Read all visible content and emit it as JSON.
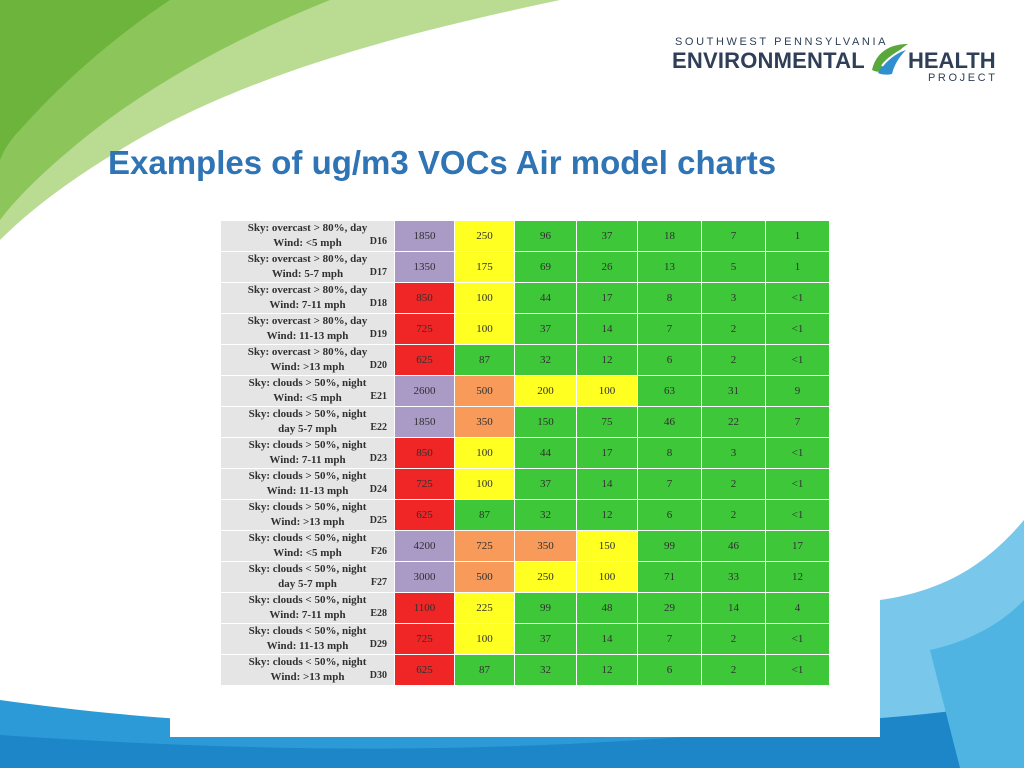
{
  "logo": {
    "top_line": "SOUTHWEST PENNSYLVANIA",
    "environmental": "ENVIRONMENTAL",
    "health": "HEALTH",
    "project": "PROJECT"
  },
  "title": "Examples of ug/m3 VOCs Air model charts",
  "colors": {
    "title": "#2f74b5",
    "purple": "#a99ac6",
    "yellow": "#ffff22",
    "red": "#f02525",
    "orange": "#f79a5a",
    "green": "#3fc73a"
  },
  "rows": [
    {
      "line1": "Sky: overcast > 80%, day",
      "line2": "Wind: <5 mph",
      "code": "D16",
      "values": [
        "1850",
        "250",
        "96",
        "37",
        "18",
        "7",
        "1"
      ],
      "colors": [
        "purple",
        "yellow",
        "green",
        "green",
        "green",
        "green",
        "green"
      ]
    },
    {
      "line1": "Sky: overcast > 80%, day",
      "line2": "Wind: 5-7 mph",
      "code": "D17",
      "values": [
        "1350",
        "175",
        "69",
        "26",
        "13",
        "5",
        "1"
      ],
      "colors": [
        "purple",
        "yellow",
        "green",
        "green",
        "green",
        "green",
        "green"
      ]
    },
    {
      "line1": "Sky: overcast > 80%, day",
      "line2": "Wind: 7-11 mph",
      "code": "D18",
      "values": [
        "850",
        "100",
        "44",
        "17",
        "8",
        "3",
        "<1"
      ],
      "colors": [
        "red",
        "yellow",
        "green",
        "green",
        "green",
        "green",
        "green"
      ]
    },
    {
      "line1": "Sky: overcast > 80%, day",
      "line2": "Wind: 11-13 mph",
      "code": "D19",
      "values": [
        "725",
        "100",
        "37",
        "14",
        "7",
        "2",
        "<1"
      ],
      "colors": [
        "red",
        "yellow",
        "green",
        "green",
        "green",
        "green",
        "green"
      ]
    },
    {
      "line1": "Sky: overcast > 80%, day",
      "line2": "Wind: >13 mph",
      "code": "D20",
      "values": [
        "625",
        "87",
        "32",
        "12",
        "6",
        "2",
        "<1"
      ],
      "colors": [
        "red",
        "green",
        "green",
        "green",
        "green",
        "green",
        "green"
      ]
    },
    {
      "line1": "Sky: clouds > 50%, night",
      "line2": "Wind: <5 mph",
      "code": "E21",
      "values": [
        "2600",
        "500",
        "200",
        "100",
        "63",
        "31",
        "9"
      ],
      "colors": [
        "purple",
        "orange",
        "yellow",
        "yellow",
        "green",
        "green",
        "green"
      ]
    },
    {
      "line1": "Sky: clouds > 50%, night",
      "line2": "day 5-7 mph",
      "code": "E22",
      "values": [
        "1850",
        "350",
        "150",
        "75",
        "46",
        "22",
        "7"
      ],
      "colors": [
        "purple",
        "orange",
        "green",
        "green",
        "green",
        "green",
        "green"
      ]
    },
    {
      "line1": "Sky: clouds > 50%, night",
      "line2": "Wind: 7-11 mph",
      "code": "D23",
      "values": [
        "850",
        "100",
        "44",
        "17",
        "8",
        "3",
        "<1"
      ],
      "colors": [
        "red",
        "yellow",
        "green",
        "green",
        "green",
        "green",
        "green"
      ]
    },
    {
      "line1": "Sky: clouds > 50%, night",
      "line2": "Wind: 11-13 mph",
      "code": "D24",
      "values": [
        "725",
        "100",
        "37",
        "14",
        "7",
        "2",
        "<1"
      ],
      "colors": [
        "red",
        "yellow",
        "green",
        "green",
        "green",
        "green",
        "green"
      ]
    },
    {
      "line1": "Sky: clouds > 50%, night",
      "line2": "Wind: >13 mph",
      "code": "D25",
      "values": [
        "625",
        "87",
        "32",
        "12",
        "6",
        "2",
        "<1"
      ],
      "colors": [
        "red",
        "green",
        "green",
        "green",
        "green",
        "green",
        "green"
      ]
    },
    {
      "line1": "Sky: clouds < 50%, night",
      "line2": "Wind: <5 mph",
      "code": "F26",
      "values": [
        "4200",
        "725",
        "350",
        "150",
        "99",
        "46",
        "17"
      ],
      "colors": [
        "purple",
        "orange",
        "orange",
        "yellow",
        "green",
        "green",
        "green"
      ]
    },
    {
      "line1": "Sky: clouds < 50%, night",
      "line2": "day 5-7 mph",
      "code": "F27",
      "values": [
        "3000",
        "500",
        "250",
        "100",
        "71",
        "33",
        "12"
      ],
      "colors": [
        "purple",
        "orange",
        "yellow",
        "yellow",
        "green",
        "green",
        "green"
      ]
    },
    {
      "line1": "Sky: clouds < 50%, night",
      "line2": "Wind: 7-11 mph",
      "code": "E28",
      "values": [
        "1100",
        "225",
        "99",
        "48",
        "29",
        "14",
        "4"
      ],
      "colors": [
        "red",
        "yellow",
        "green",
        "green",
        "green",
        "green",
        "green"
      ]
    },
    {
      "line1": "Sky: clouds < 50%, night",
      "line2": "Wind: 11-13 mph",
      "code": "D29",
      "values": [
        "725",
        "100",
        "37",
        "14",
        "7",
        "2",
        "<1"
      ],
      "colors": [
        "red",
        "yellow",
        "green",
        "green",
        "green",
        "green",
        "green"
      ]
    },
    {
      "line1": "Sky: clouds < 50%, night",
      "line2": "Wind: >13 mph",
      "code": "D30",
      "values": [
        "625",
        "87",
        "32",
        "12",
        "6",
        "2",
        "<1"
      ],
      "colors": [
        "red",
        "green",
        "green",
        "green",
        "green",
        "green",
        "green"
      ]
    }
  ]
}
